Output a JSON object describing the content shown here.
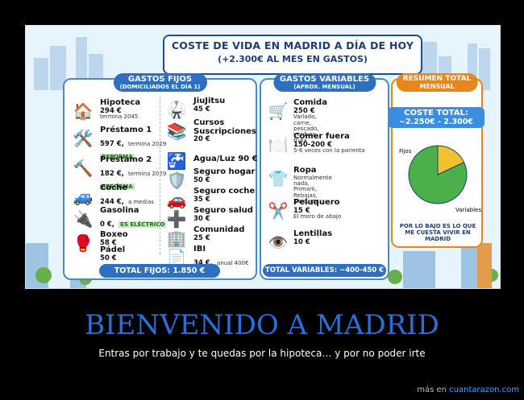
{
  "poster": {
    "title": "COSTE DE VIDA EN MADRID A DÍA DE HOY",
    "subtitle": "(+2.300€ AL MES EN GASTOS)",
    "fixed": {
      "title": "GASTOS FIJOS",
      "subtitle": "(DOMICILIADOS EL DÍA 1)",
      "left_items": [
        {
          "name": "Hipoteca",
          "value": "294 €",
          "note": "termina 2045",
          "tag": "",
          "icon": "house-icon"
        },
        {
          "name": "Préstamo 1",
          "value": "597 €,",
          "note": "termina 2029",
          "tag": "REFORMA",
          "icon": "tools-icon"
        },
        {
          "name": "Préstamo 2",
          "value": "182 €,",
          "note": "termina 2029",
          "tag": "REFORMA",
          "icon": "hammer-icon"
        },
        {
          "name": "Coche",
          "value": "244 €,",
          "note": "a medias",
          "tag": "",
          "icon": "car-icon"
        },
        {
          "name": "Gasolina",
          "value": "0 €,",
          "note": "",
          "tag": "ES ELÉCTRICO",
          "icon": "ev-car-icon"
        },
        {
          "name": "Boxeo",
          "value": "58 €",
          "note": "",
          "tag": "",
          "icon": "boxing-glove-icon"
        },
        {
          "name": "Pádel",
          "value": "50 €",
          "note": "",
          "tag": "",
          "icon": ""
        }
      ],
      "right_items": [
        {
          "name": "JiuJitsu",
          "value": "45 €",
          "note": "",
          "icon": "martial-arts-icon"
        },
        {
          "name": "Cursos",
          "value": "",
          "note": "",
          "icon": "books-icon"
        },
        {
          "name": "Suscripciones",
          "value": "20 €",
          "note": "",
          "icon": "subscriptions-icon"
        },
        {
          "name": "Agua/Luz 90 €",
          "value": "",
          "note": "",
          "icon": "faucet-icon"
        },
        {
          "name": "Seguro hogar",
          "value": "50 €",
          "note": "",
          "icon": "shield-home-icon"
        },
        {
          "name": "Seguro coche",
          "value": "35 €",
          "note": "",
          "icon": "shield-car-icon"
        },
        {
          "name": "Seguro salud",
          "value": "30 €",
          "note": "",
          "icon": "health-cross-icon"
        },
        {
          "name": "Comunidad",
          "value": "25 €",
          "note": "",
          "icon": "building-icon"
        },
        {
          "name": "IBI",
          "value": "34 €,",
          "note": "anual 400€",
          "icon": "document-icon"
        }
      ],
      "total": "TOTAL FIJOS: 1.850 €"
    },
    "variable": {
      "title": "GASTOS VARIABLES",
      "subtitle": "(APROX. MENSUAL)",
      "items": [
        {
          "name": "Comida",
          "value": "250 €",
          "note": "Variado, carne, pescado,\nverdura, fruta",
          "icon": "groceries-icon"
        },
        {
          "name": "Comer fuera",
          "value": "150-200 €",
          "note": "5-6 veces con la parienta",
          "icon": "dinner-icon"
        },
        {
          "name": "Ropa",
          "value": "",
          "note": "Normalmente nada,\nPrimark, Rebajas, Zara, etc.",
          "icon": "clothes-icon"
        },
        {
          "name": "Peluquero",
          "value": "15 €",
          "note": "El moro de abajo",
          "icon": "scissors-icon"
        },
        {
          "name": "Lentillas",
          "value": "10 €",
          "note": "",
          "icon": "lens-case-icon"
        }
      ],
      "total": "TOTAL VARIABLES: ~400-450 €"
    },
    "summary": {
      "title": "RESUMEN TOTAL",
      "subtitle": "MENSUAL",
      "cost_label": "COSTE TOTAL:",
      "cost_value": "~2.250€ - 2.300€",
      "legend_fixed": "Fijos",
      "legend_variable": "Variables",
      "note": "POR LO BAJO ES LO QUE ME CUESTA VIVIR EN MADRID",
      "pie": {
        "fijos_fraction": 0.82,
        "variables_fraction": 0.18
      }
    },
    "colors": {
      "fixed": "#2f6fbf",
      "variable": "#2f6fbf",
      "summary": "#e8861c",
      "pie_fixed": "#4cb04a",
      "pie_variable": "#f2c12e"
    }
  },
  "caption": {
    "title": "BIENVENIDO A MADRID",
    "subtitle": "Entras por trabajo y te quedas por la hipoteca… y por no poder irte"
  },
  "footer": {
    "prefix": "más en",
    "link": "cuantarazon.com"
  }
}
